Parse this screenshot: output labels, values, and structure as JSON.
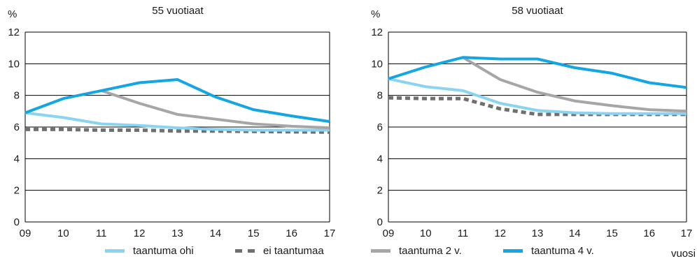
{
  "colors": {
    "taantuma_ohi": "#8ad3f2",
    "ei_taantumaa": "#707070",
    "taantuma_2v": "#a6a6a6",
    "taantuma_4v": "#14a5e3"
  },
  "legend": {
    "items": [
      {
        "label": "taantuma ohi",
        "style": "solid",
        "color": "#8ad3f2"
      },
      {
        "label": "ei taantumaa",
        "style": "dashed",
        "color": "#707070"
      },
      {
        "label": "taantuma 2 v.",
        "style": "solid",
        "color": "#a6a6a6"
      },
      {
        "label": "taantuma 4 v.",
        "style": "solid",
        "color": "#14a5e3"
      }
    ]
  },
  "chart_data": [
    {
      "type": "line",
      "title": "55 vuotiaat",
      "ylabel": "%",
      "xlabel": "",
      "x": [
        "09",
        "10",
        "11",
        "12",
        "13",
        "14",
        "15",
        "16",
        "17"
      ],
      "ylim": [
        0,
        12
      ],
      "yticks": [
        0,
        2,
        4,
        6,
        8,
        10,
        12
      ],
      "grid": true,
      "series": [
        {
          "name": "taantuma ohi",
          "style": "solid",
          "values": [
            6.9,
            6.6,
            6.2,
            6.1,
            5.95,
            5.85,
            5.8,
            5.8,
            5.8
          ]
        },
        {
          "name": "ei taantumaa",
          "style": "dashed",
          "values": [
            5.85,
            5.85,
            5.8,
            5.8,
            5.75,
            5.75,
            5.72,
            5.7,
            5.68
          ]
        },
        {
          "name": "taantuma 2 v.",
          "style": "solid",
          "values": [
            null,
            null,
            8.3,
            7.5,
            6.8,
            6.5,
            6.2,
            6.05,
            5.95
          ]
        },
        {
          "name": "taantuma 4 v.",
          "style": "solid",
          "values": [
            6.9,
            7.8,
            8.3,
            8.8,
            9.0,
            7.9,
            7.1,
            6.7,
            6.35
          ]
        }
      ]
    },
    {
      "type": "line",
      "title": "58 vuotiaat",
      "ylabel": "%",
      "xlabel": "vuosi",
      "x": [
        "09",
        "10",
        "11",
        "12",
        "13",
        "14",
        "15",
        "16",
        "17"
      ],
      "ylim": [
        0,
        12
      ],
      "yticks": [
        0,
        2,
        4,
        6,
        8,
        10,
        12
      ],
      "grid": true,
      "series": [
        {
          "name": "taantuma ohi",
          "style": "solid",
          "values": [
            9.05,
            8.55,
            8.3,
            7.5,
            7.05,
            6.9,
            6.85,
            6.85,
            6.85
          ]
        },
        {
          "name": "ei taantumaa",
          "style": "dashed",
          "values": [
            7.85,
            7.8,
            7.8,
            7.15,
            6.8,
            6.8,
            6.8,
            6.8,
            6.8
          ]
        },
        {
          "name": "taantuma 2 v.",
          "style": "solid",
          "values": [
            null,
            null,
            10.4,
            9.0,
            8.2,
            7.65,
            7.35,
            7.1,
            7.0
          ]
        },
        {
          "name": "taantuma 4 v.",
          "style": "solid",
          "values": [
            9.05,
            9.8,
            10.4,
            10.3,
            10.3,
            9.75,
            9.4,
            8.8,
            8.5
          ]
        }
      ]
    }
  ]
}
